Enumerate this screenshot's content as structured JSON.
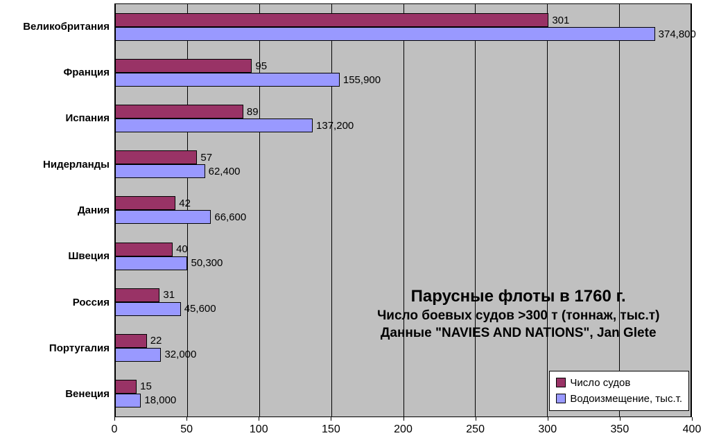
{
  "chart_data": {
    "type": "bar",
    "orientation": "horizontal",
    "title": "Парусные флоты в 1760 г.",
    "subtitle": "Число боевых судов >300 т (тоннаж, тыс.т)",
    "source": "Данные \"NAVIES AND NATIONS\", Jan Glete",
    "categories": [
      "Великобритания",
      "Франция",
      "Испания",
      "Нидерланды",
      "Дания",
      "Швеция",
      "Россия",
      "Португалия",
      "Венеция"
    ],
    "series": [
      {
        "name": "Число судов",
        "color": "#993366",
        "values": [
          301,
          95,
          89,
          57,
          42,
          40,
          31,
          22,
          15
        ],
        "labels": [
          "301",
          "95",
          "89",
          "57",
          "42",
          "40",
          "31",
          "22",
          "15"
        ]
      },
      {
        "name": "Водоизмещение, тыс.т.",
        "color": "#9999FF",
        "values": [
          374.8,
          155.9,
          137.2,
          62.4,
          66.6,
          50.3,
          45.6,
          32.0,
          18.0
        ],
        "labels": [
          "374,800",
          "155,900",
          "137,200",
          "62,400",
          "66,600",
          "50,300",
          "45,600",
          "32,000",
          "18,000"
        ]
      }
    ],
    "xlim": [
      0,
      400
    ],
    "xticks": [
      0,
      50,
      100,
      150,
      200,
      250,
      300,
      350,
      400
    ],
    "grid": true,
    "legend_position": "bottom-right",
    "plot_background": "#C0C0C0",
    "gridline_color": "#000000"
  }
}
